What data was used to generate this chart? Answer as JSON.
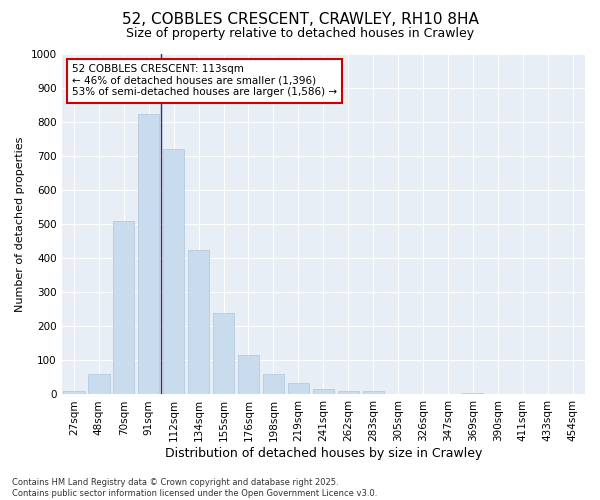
{
  "title": "52, COBBLES CRESCENT, CRAWLEY, RH10 8HA",
  "subtitle": "Size of property relative to detached houses in Crawley",
  "xlabel": "Distribution of detached houses by size in Crawley",
  "ylabel": "Number of detached properties",
  "categories": [
    "27sqm",
    "48sqm",
    "70sqm",
    "91sqm",
    "112sqm",
    "134sqm",
    "155sqm",
    "176sqm",
    "198sqm",
    "219sqm",
    "241sqm",
    "262sqm",
    "283sqm",
    "305sqm",
    "326sqm",
    "347sqm",
    "369sqm",
    "390sqm",
    "411sqm",
    "433sqm",
    "454sqm"
  ],
  "values": [
    10,
    60,
    510,
    825,
    720,
    425,
    240,
    115,
    60,
    33,
    15,
    10,
    10,
    0,
    0,
    0,
    5,
    0,
    0,
    0,
    0
  ],
  "bar_color": "#c9dced",
  "bar_edge_color": "#aec6de",
  "highlight_index": 4,
  "highlight_line_color": "#2b2b8a",
  "ylim": [
    0,
    1000
  ],
  "yticks": [
    0,
    100,
    200,
    300,
    400,
    500,
    600,
    700,
    800,
    900,
    1000
  ],
  "annotation_text": "52 COBBLES CRESCENT: 113sqm\n← 46% of detached houses are smaller (1,396)\n53% of semi-detached houses are larger (1,586) →",
  "annotation_box_color": "#ffffff",
  "annotation_box_edge_color": "#cc0000",
  "background_color": "#e8eef5",
  "footer_text": "Contains HM Land Registry data © Crown copyright and database right 2025.\nContains public sector information licensed under the Open Government Licence v3.0.",
  "title_fontsize": 11,
  "subtitle_fontsize": 9,
  "tick_fontsize": 7.5,
  "ylabel_fontsize": 8,
  "xlabel_fontsize": 9
}
